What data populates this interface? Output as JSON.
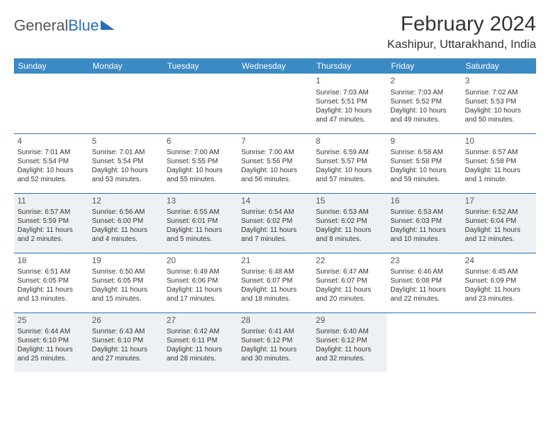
{
  "logo": {
    "text1": "General",
    "text2": "Blue"
  },
  "title": "February 2024",
  "location": "Kashipur, Uttarakhand, India",
  "style": {
    "header_bg": "#3b8ac4",
    "header_fg": "#ffffff",
    "row_divider": "#2a6db8",
    "shade_bg": "#eef1f3",
    "title_fontsize": 30,
    "location_fontsize": 17,
    "dow_fontsize": 12,
    "cell_fontsize": 10,
    "daynum_fontsize": 12,
    "background": "#ffffff"
  },
  "days_of_week": [
    "Sunday",
    "Monday",
    "Tuesday",
    "Wednesday",
    "Thursday",
    "Friday",
    "Saturday"
  ],
  "weeks": [
    {
      "shaded": false,
      "cells": [
        null,
        null,
        null,
        null,
        {
          "n": "1",
          "sr": "Sunrise: 7:03 AM",
          "ss": "Sunset: 5:51 PM",
          "d1": "Daylight: 10 hours",
          "d2": "and 47 minutes."
        },
        {
          "n": "2",
          "sr": "Sunrise: 7:03 AM",
          "ss": "Sunset: 5:52 PM",
          "d1": "Daylight: 10 hours",
          "d2": "and 49 minutes."
        },
        {
          "n": "3",
          "sr": "Sunrise: 7:02 AM",
          "ss": "Sunset: 5:53 PM",
          "d1": "Daylight: 10 hours",
          "d2": "and 50 minutes."
        }
      ]
    },
    {
      "shaded": false,
      "cells": [
        {
          "n": "4",
          "sr": "Sunrise: 7:01 AM",
          "ss": "Sunset: 5:54 PM",
          "d1": "Daylight: 10 hours",
          "d2": "and 52 minutes."
        },
        {
          "n": "5",
          "sr": "Sunrise: 7:01 AM",
          "ss": "Sunset: 5:54 PM",
          "d1": "Daylight: 10 hours",
          "d2": "and 53 minutes."
        },
        {
          "n": "6",
          "sr": "Sunrise: 7:00 AM",
          "ss": "Sunset: 5:55 PM",
          "d1": "Daylight: 10 hours",
          "d2": "and 55 minutes."
        },
        {
          "n": "7",
          "sr": "Sunrise: 7:00 AM",
          "ss": "Sunset: 5:56 PM",
          "d1": "Daylight: 10 hours",
          "d2": "and 56 minutes."
        },
        {
          "n": "8",
          "sr": "Sunrise: 6:59 AM",
          "ss": "Sunset: 5:57 PM",
          "d1": "Daylight: 10 hours",
          "d2": "and 57 minutes."
        },
        {
          "n": "9",
          "sr": "Sunrise: 6:58 AM",
          "ss": "Sunset: 5:58 PM",
          "d1": "Daylight: 10 hours",
          "d2": "and 59 minutes."
        },
        {
          "n": "10",
          "sr": "Sunrise: 6:57 AM",
          "ss": "Sunset: 5:58 PM",
          "d1": "Daylight: 11 hours",
          "d2": "and 1 minute."
        }
      ]
    },
    {
      "shaded": true,
      "cells": [
        {
          "n": "11",
          "sr": "Sunrise: 6:57 AM",
          "ss": "Sunset: 5:59 PM",
          "d1": "Daylight: 11 hours",
          "d2": "and 2 minutes."
        },
        {
          "n": "12",
          "sr": "Sunrise: 6:56 AM",
          "ss": "Sunset: 6:00 PM",
          "d1": "Daylight: 11 hours",
          "d2": "and 4 minutes."
        },
        {
          "n": "13",
          "sr": "Sunrise: 6:55 AM",
          "ss": "Sunset: 6:01 PM",
          "d1": "Daylight: 11 hours",
          "d2": "and 5 minutes."
        },
        {
          "n": "14",
          "sr": "Sunrise: 6:54 AM",
          "ss": "Sunset: 6:02 PM",
          "d1": "Daylight: 11 hours",
          "d2": "and 7 minutes."
        },
        {
          "n": "15",
          "sr": "Sunrise: 6:53 AM",
          "ss": "Sunset: 6:02 PM",
          "d1": "Daylight: 11 hours",
          "d2": "and 8 minutes."
        },
        {
          "n": "16",
          "sr": "Sunrise: 6:53 AM",
          "ss": "Sunset: 6:03 PM",
          "d1": "Daylight: 11 hours",
          "d2": "and 10 minutes."
        },
        {
          "n": "17",
          "sr": "Sunrise: 6:52 AM",
          "ss": "Sunset: 6:04 PM",
          "d1": "Daylight: 11 hours",
          "d2": "and 12 minutes."
        }
      ]
    },
    {
      "shaded": false,
      "cells": [
        {
          "n": "18",
          "sr": "Sunrise: 6:51 AM",
          "ss": "Sunset: 6:05 PM",
          "d1": "Daylight: 11 hours",
          "d2": "and 13 minutes."
        },
        {
          "n": "19",
          "sr": "Sunrise: 6:50 AM",
          "ss": "Sunset: 6:05 PM",
          "d1": "Daylight: 11 hours",
          "d2": "and 15 minutes."
        },
        {
          "n": "20",
          "sr": "Sunrise: 6:49 AM",
          "ss": "Sunset: 6:06 PM",
          "d1": "Daylight: 11 hours",
          "d2": "and 17 minutes."
        },
        {
          "n": "21",
          "sr": "Sunrise: 6:48 AM",
          "ss": "Sunset: 6:07 PM",
          "d1": "Daylight: 11 hours",
          "d2": "and 18 minutes."
        },
        {
          "n": "22",
          "sr": "Sunrise: 6:47 AM",
          "ss": "Sunset: 6:07 PM",
          "d1": "Daylight: 11 hours",
          "d2": "and 20 minutes."
        },
        {
          "n": "23",
          "sr": "Sunrise: 6:46 AM",
          "ss": "Sunset: 6:08 PM",
          "d1": "Daylight: 11 hours",
          "d2": "and 22 minutes."
        },
        {
          "n": "24",
          "sr": "Sunrise: 6:45 AM",
          "ss": "Sunset: 6:09 PM",
          "d1": "Daylight: 11 hours",
          "d2": "and 23 minutes."
        }
      ]
    },
    {
      "shaded": true,
      "cells": [
        {
          "n": "25",
          "sr": "Sunrise: 6:44 AM",
          "ss": "Sunset: 6:10 PM",
          "d1": "Daylight: 11 hours",
          "d2": "and 25 minutes."
        },
        {
          "n": "26",
          "sr": "Sunrise: 6:43 AM",
          "ss": "Sunset: 6:10 PM",
          "d1": "Daylight: 11 hours",
          "d2": "and 27 minutes."
        },
        {
          "n": "27",
          "sr": "Sunrise: 6:42 AM",
          "ss": "Sunset: 6:11 PM",
          "d1": "Daylight: 11 hours",
          "d2": "and 28 minutes."
        },
        {
          "n": "28",
          "sr": "Sunrise: 6:41 AM",
          "ss": "Sunset: 6:12 PM",
          "d1": "Daylight: 11 hours",
          "d2": "and 30 minutes."
        },
        {
          "n": "29",
          "sr": "Sunrise: 6:40 AM",
          "ss": "Sunset: 6:12 PM",
          "d1": "Daylight: 11 hours",
          "d2": "and 32 minutes."
        },
        null,
        null
      ]
    }
  ]
}
